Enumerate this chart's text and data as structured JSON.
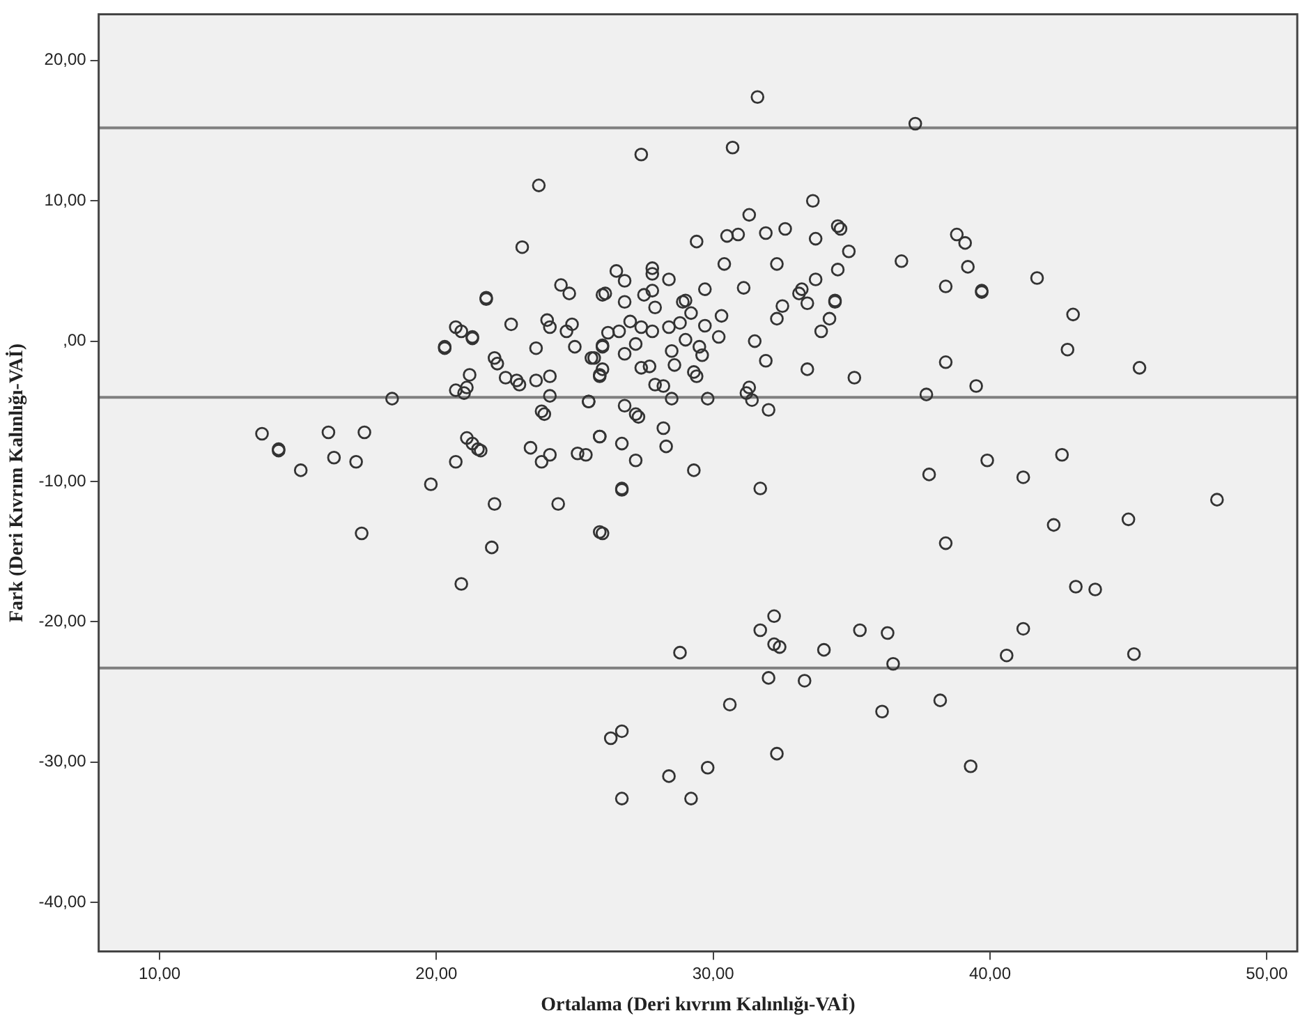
{
  "chart_data": {
    "type": "scatter",
    "xlabel": "Ortalama (Deri kıvrım Kalınlığı-VAİ)",
    "ylabel": "Fark (Deri Kıvrım Kalınlığı-VAİ)",
    "xlim": [
      7.8,
      51.1
    ],
    "ylim": [
      -43.5,
      23.3
    ],
    "xticks": [
      {
        "value": 10,
        "label": "10,00"
      },
      {
        "value": 20,
        "label": "20,00"
      },
      {
        "value": 30,
        "label": "30,00"
      },
      {
        "value": 40,
        "label": "40,00"
      },
      {
        "value": 50,
        "label": "50,00"
      }
    ],
    "yticks": [
      {
        "value": -40,
        "label": "-40,00"
      },
      {
        "value": -30,
        "label": "-30,00"
      },
      {
        "value": -20,
        "label": "-20,00"
      },
      {
        "value": -10,
        "label": "-10,00"
      },
      {
        "value": 0,
        "label": ",00"
      },
      {
        "value": 10,
        "label": "10,00"
      },
      {
        "value": 20,
        "label": "20,00"
      }
    ],
    "marker": "circle",
    "ref_lines": [
      {
        "axis": "y",
        "value": 15.2,
        "color": "#808080"
      },
      {
        "axis": "y",
        "value": -4.0,
        "color": "#808080"
      },
      {
        "axis": "y",
        "value": -23.3,
        "color": "#808080"
      }
    ],
    "series": [
      {
        "color": "#333333",
        "x": [
          23.7,
          23.1,
          21.8,
          21.8,
          24.5,
          24.8,
          26.0,
          22.7,
          24.0,
          24.1,
          24.9,
          24.7,
          20.7,
          20.9,
          21.3,
          21.3,
          20.3,
          20.3,
          23.6,
          25.0,
          25.6,
          26.0,
          25.9,
          22.1,
          22.2,
          21.2,
          22.5,
          22.9,
          23.0,
          23.6,
          24.1,
          20.7,
          21.0,
          21.1,
          18.4,
          24.1,
          25.5,
          23.8,
          23.9,
          13.7,
          14.3,
          14.3,
          15.1,
          16.1,
          17.4,
          16.3,
          17.1,
          21.1,
          21.3,
          21.5,
          21.6,
          20.7,
          19.8,
          23.4,
          23.8,
          24.1,
          25.1,
          25.4,
          25.9,
          22.1,
          24.4,
          17.3,
          22.0,
          20.9,
          26.0,
          31.6,
          37.3,
          27.4,
          30.7,
          33.6,
          31.3,
          29.4,
          30.5,
          30.9,
          31.9,
          32.6,
          33.7,
          34.5,
          34.6,
          34.9,
          36.8,
          38.8,
          39.1,
          39.2,
          38.4,
          39.7,
          39.7,
          34.5,
          30.4,
          32.3,
          33.7,
          31.1,
          33.2,
          33.1,
          34.4,
          34.4,
          33.4,
          32.5,
          32.3,
          34.2,
          33.9,
          26.5,
          26.8,
          27.8,
          27.8,
          28.4,
          26.1,
          26.8,
          27.5,
          27.8,
          27.9,
          28.9,
          29.0,
          29.7,
          30.3,
          27.0,
          27.4,
          26.2,
          26.6,
          27.8,
          28.4,
          28.8,
          29.2,
          29.7,
          30.2,
          27.2,
          26.0,
          25.7,
          26.8,
          29.0,
          28.5,
          29.5,
          29.6,
          31.5,
          31.9,
          33.4,
          35.1,
          27.4,
          27.7,
          28.6,
          29.3,
          29.4,
          27.9,
          28.2,
          28.5,
          29.8,
          31.2,
          31.3,
          31.4,
          32.0,
          25.9,
          26.0,
          25.5,
          26.8,
          27.2,
          27.3,
          28.2,
          28.3,
          25.9,
          26.7,
          27.2,
          29.3,
          26.7,
          26.7,
          31.7,
          25.9,
          37.7,
          38.4,
          39.5,
          37.8,
          39.9,
          38.4,
          41.7,
          43.0,
          42.8,
          45.4,
          42.6,
          41.2,
          48.2,
          45.0,
          42.3,
          43.1,
          43.8,
          41.2,
          40.6,
          45.2,
          32.2,
          31.7,
          32.2,
          32.4,
          28.8,
          34.0,
          35.3,
          36.3,
          36.5,
          32.0,
          33.3,
          30.6,
          36.1,
          38.2,
          26.3,
          26.7,
          32.3,
          39.3,
          29.8,
          28.4,
          26.7,
          29.2
        ],
        "values": [
          11.1,
          6.7,
          3.1,
          3.0,
          4.0,
          3.4,
          3.3,
          1.2,
          1.5,
          1.0,
          1.2,
          0.7,
          1.0,
          0.7,
          0.3,
          0.2,
          -0.5,
          -0.4,
          -0.5,
          -0.4,
          -1.2,
          -0.4,
          -2.5,
          -1.2,
          -1.6,
          -2.4,
          -2.6,
          -2.8,
          -3.1,
          -2.8,
          -2.5,
          -3.5,
          -3.7,
          -3.3,
          -4.1,
          -3.9,
          -4.3,
          -5.0,
          -5.2,
          -6.6,
          -7.7,
          -7.8,
          -9.2,
          -6.5,
          -6.5,
          -8.3,
          -8.6,
          -6.9,
          -7.3,
          -7.7,
          -7.8,
          -8.6,
          -10.2,
          -7.6,
          -8.6,
          -8.1,
          -8.0,
          -8.1,
          -6.8,
          -11.6,
          -11.6,
          -13.7,
          -14.7,
          -17.3,
          -13.7,
          17.4,
          15.5,
          13.3,
          13.8,
          10.0,
          9.0,
          7.1,
          7.5,
          7.6,
          7.7,
          8.0,
          7.3,
          8.2,
          8.0,
          6.4,
          5.7,
          7.6,
          7.0,
          5.3,
          3.9,
          3.5,
          3.6,
          5.1,
          5.5,
          5.5,
          4.4,
          3.8,
          3.7,
          3.4,
          2.8,
          2.9,
          2.7,
          2.5,
          1.6,
          1.6,
          0.7,
          5.0,
          4.3,
          5.2,
          4.8,
          4.4,
          3.4,
          2.8,
          3.3,
          3.6,
          2.4,
          2.8,
          2.9,
          3.7,
          1.8,
          1.4,
          1.0,
          0.6,
          0.7,
          0.7,
          1.0,
          1.3,
          2.0,
          1.1,
          0.3,
          -0.2,
          -0.3,
          -1.2,
          -0.9,
          0.1,
          -0.7,
          -0.4,
          -1.0,
          0.0,
          -1.4,
          -2.0,
          -2.6,
          -1.9,
          -1.8,
          -1.7,
          -2.2,
          -2.5,
          -3.1,
          -3.2,
          -4.1,
          -4.1,
          -3.7,
          -3.3,
          -4.2,
          -4.9,
          -2.4,
          -2.0,
          -4.3,
          -4.6,
          -5.2,
          -5.4,
          -6.2,
          -7.5,
          -6.8,
          -7.3,
          -8.5,
          -9.2,
          -10.6,
          -10.5,
          -10.5,
          -13.6,
          -3.8,
          -1.5,
          -3.2,
          -9.5,
          -8.5,
          -14.4,
          4.5,
          1.9,
          -0.6,
          -1.9,
          -8.1,
          -9.7,
          -11.3,
          -12.7,
          -13.1,
          -17.5,
          -17.7,
          -20.5,
          -22.4,
          -22.3,
          -19.6,
          -20.6,
          -21.6,
          -21.8,
          -22.2,
          -22.0,
          -20.6,
          -20.8,
          -23.0,
          -24.0,
          -24.2,
          -25.9,
          -26.4,
          -25.6,
          -28.3,
          -27.8,
          -29.4,
          -30.3,
          -30.4,
          -31.0,
          -32.6,
          -32.6
        ]
      }
    ]
  }
}
